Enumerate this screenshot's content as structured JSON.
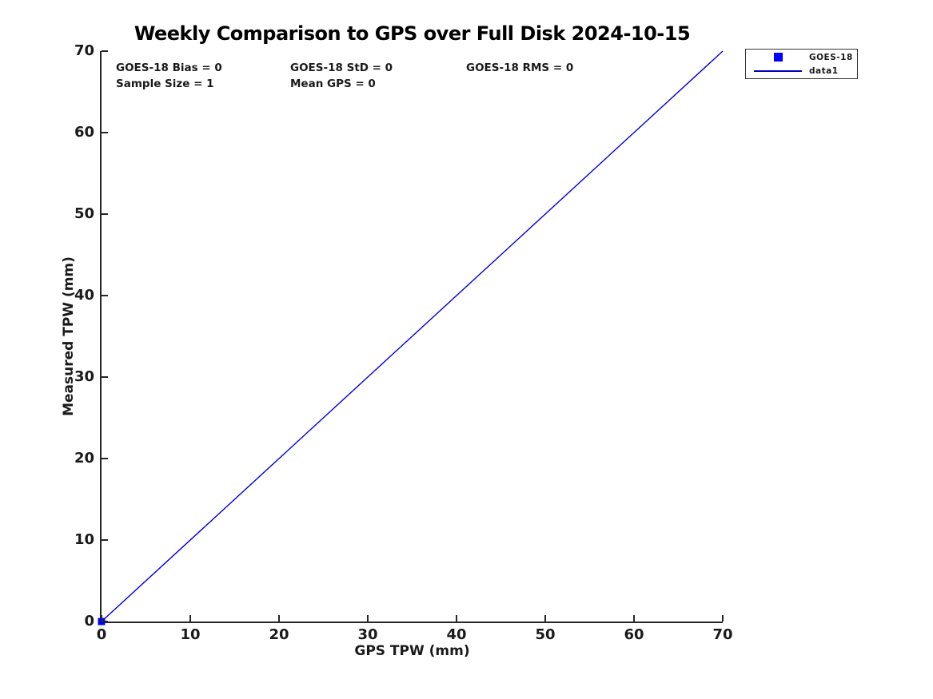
{
  "title": "Weekly Comparison to GPS over Full Disk 2024-10-15",
  "annotations": {
    "bias": "GOES-18 Bias = 0",
    "std": "GOES-18 StD = 0",
    "rms": "GOES-18 RMS = 0",
    "sample_size": "Sample Size = 1",
    "mean_gps": "Mean GPS = 0"
  },
  "axes": {
    "x": {
      "label": "GPS TPW (mm)",
      "ticks": [
        "0",
        "10",
        "20",
        "30",
        "40",
        "50",
        "60",
        "70"
      ]
    },
    "y": {
      "label": "Measured TPW (mm)",
      "ticks": [
        "0",
        "10",
        "20",
        "30",
        "40",
        "50",
        "60",
        "70"
      ]
    }
  },
  "legend": {
    "items": [
      {
        "label": "GOES-18",
        "swatch": "square-marker",
        "color": "#0000ff"
      },
      {
        "label": "data1",
        "swatch": "line",
        "color": "#0000bb"
      }
    ]
  },
  "colors": {
    "line": "#0000dd",
    "marker": "#0000ff",
    "axis": "#262626",
    "text": "#1a1a1a"
  },
  "chart_data": {
    "type": "scatter",
    "title": "Weekly Comparison to GPS over Full Disk 2024-10-15",
    "xlabel": "GPS TPW (mm)",
    "ylabel": "Measured TPW (mm)",
    "xlim": [
      0,
      70
    ],
    "ylim": [
      0,
      70
    ],
    "xticks": [
      0,
      10,
      20,
      30,
      40,
      50,
      60,
      70
    ],
    "yticks": [
      0,
      10,
      20,
      30,
      40,
      50,
      60,
      70
    ],
    "grid": false,
    "legend_position": "outside-top-right",
    "series": [
      {
        "name": "GOES-18",
        "type": "scatter",
        "marker": "filled-square",
        "color": "#0000ff",
        "points": [
          [
            0,
            0
          ]
        ]
      },
      {
        "name": "data1",
        "type": "line",
        "color": "#0000dd",
        "x": [
          0,
          70
        ],
        "y": [
          0,
          70
        ]
      }
    ],
    "stats": {
      "bias": 0,
      "std": 0,
      "rms": 0,
      "sample_size": 1,
      "mean_gps": 0
    }
  }
}
